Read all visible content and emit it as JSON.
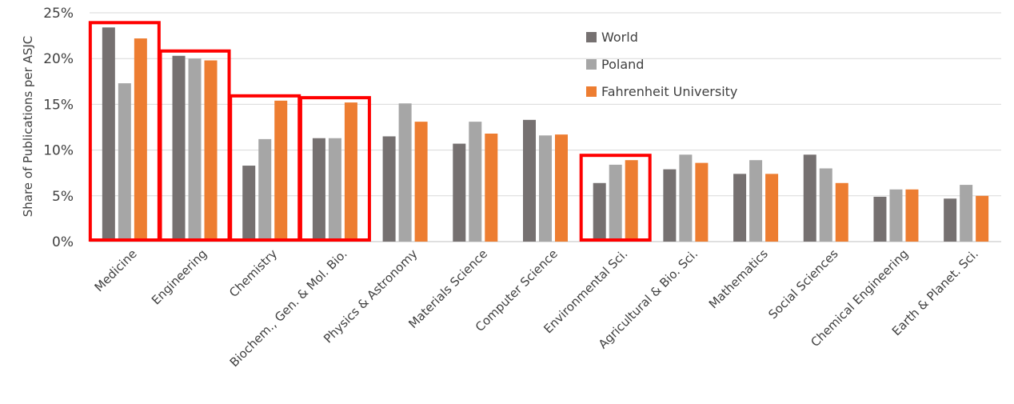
{
  "chart_data": {
    "type": "bar",
    "title": "",
    "xlabel": "",
    "ylabel": "Share of Publications per ASJC",
    "ylim": [
      0,
      25
    ],
    "yticks": [
      0,
      5,
      10,
      15,
      20,
      25
    ],
    "ytick_labels": [
      "0%",
      "5%",
      "10%",
      "15%",
      "20%",
      "25%"
    ],
    "grid": true,
    "legend_position": "top-right",
    "categories": [
      "Medicine",
      "Engineering",
      "Chemistry",
      "Biochem., Gen. & Mol. Bio.",
      "Physics & Astronomy",
      "Materials Science",
      "Computer Science",
      "Environmental Sci.",
      "Agricultural & Bio. Sci.",
      "Mathematics",
      "Social Sciences",
      "Chemical Engineering",
      "Earth & Planet. Sci."
    ],
    "series": [
      {
        "name": "World",
        "color": "#767171",
        "values": [
          23.4,
          20.3,
          8.3,
          11.3,
          11.5,
          10.7,
          13.3,
          6.4,
          7.9,
          7.4,
          9.5,
          4.9,
          4.7
        ]
      },
      {
        "name": "Poland",
        "color": "#a6a6a6",
        "values": [
          17.3,
          20.0,
          11.2,
          11.3,
          15.1,
          13.1,
          11.6,
          8.4,
          9.5,
          8.9,
          8.0,
          5.7,
          6.2
        ]
      },
      {
        "name": "Fahrenheit University",
        "color": "#ed7d31",
        "values": [
          22.2,
          19.8,
          15.4,
          15.2,
          13.1,
          11.8,
          11.7,
          8.9,
          8.6,
          7.4,
          6.4,
          5.7,
          5.0
        ]
      }
    ],
    "highlighted_categories": [
      "Medicine",
      "Engineering",
      "Chemistry",
      "Biochem., Gen. & Mol. Bio.",
      "Environmental Sci."
    ],
    "highlight_color": "#ff0000"
  }
}
